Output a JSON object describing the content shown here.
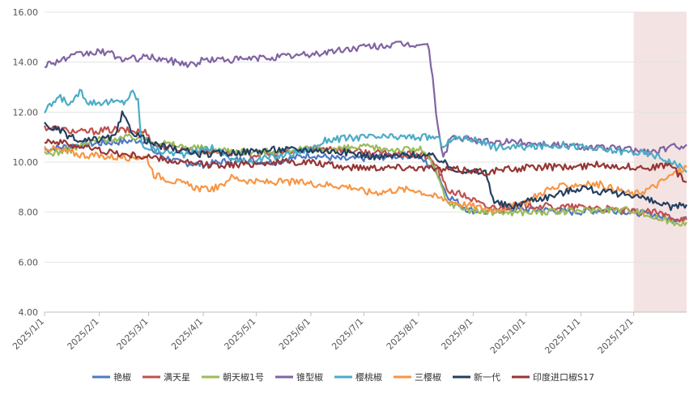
{
  "chart_data": {
    "type": "line",
    "title": "",
    "xlabel": "",
    "ylabel": "",
    "ylim": [
      4,
      16
    ],
    "yticks": [
      4,
      6,
      8,
      10,
      12,
      14,
      16
    ],
    "ytick_labels": [
      "4.00",
      "6.00",
      "8.00",
      "10.00",
      "12.00",
      "14.00",
      "16.00"
    ],
    "x_start": "2025-01-01",
    "x_end": "2025-12-31",
    "xtick_labels": [
      "2025/1/1",
      "2025/2/1",
      "2025/3/1",
      "2025/4/1",
      "2025/5/1",
      "2025/6/1",
      "2025/7/1",
      "2025/8/1",
      "2025/9/1",
      "2025/10/1",
      "2025/11/1",
      "2025/12/1"
    ],
    "xtick_days": [
      0,
      31,
      59,
      90,
      120,
      151,
      181,
      212,
      243,
      273,
      304,
      334
    ],
    "highlight_region": {
      "from_day": 334,
      "to_day": 364,
      "color": "#f2dede"
    },
    "legend_position": "bottom-center",
    "series": [
      {
        "name": "艳椒",
        "color": "#4e79c0",
        "points": [
          [
            0,
            10.5
          ],
          [
            20,
            10.7
          ],
          [
            40,
            10.8
          ],
          [
            58,
            10.9
          ],
          [
            62,
            10.4
          ],
          [
            75,
            10.0
          ],
          [
            90,
            9.9
          ],
          [
            110,
            10.1
          ],
          [
            130,
            10.0
          ],
          [
            150,
            10.3
          ],
          [
            170,
            10.1
          ],
          [
            190,
            10.2
          ],
          [
            210,
            10.3
          ],
          [
            222,
            9.7
          ],
          [
            228,
            8.7
          ],
          [
            240,
            8.1
          ],
          [
            250,
            8.0
          ],
          [
            260,
            8.1
          ],
          [
            280,
            8.1
          ],
          [
            300,
            8.0
          ],
          [
            320,
            8.1
          ],
          [
            334,
            8.0
          ],
          [
            345,
            7.9
          ],
          [
            356,
            7.7
          ],
          [
            364,
            7.8
          ]
        ]
      },
      {
        "name": "满天星",
        "color": "#c0504d",
        "points": [
          [
            0,
            11.4
          ],
          [
            20,
            11.2
          ],
          [
            40,
            11.3
          ],
          [
            58,
            11.2
          ],
          [
            62,
            10.7
          ],
          [
            80,
            10.5
          ],
          [
            100,
            10.4
          ],
          [
            120,
            10.3
          ],
          [
            140,
            10.4
          ],
          [
            160,
            10.6
          ],
          [
            180,
            10.4
          ],
          [
            200,
            10.3
          ],
          [
            215,
            10.3
          ],
          [
            222,
            9.9
          ],
          [
            228,
            8.9
          ],
          [
            240,
            8.6
          ],
          [
            250,
            8.2
          ],
          [
            260,
            8.2
          ],
          [
            270,
            8.3
          ],
          [
            290,
            8.2
          ],
          [
            310,
            8.2
          ],
          [
            334,
            8.0
          ],
          [
            345,
            8.0
          ],
          [
            356,
            7.8
          ],
          [
            364,
            7.7
          ]
        ]
      },
      {
        "name": "朝天椒1号",
        "color": "#9bbb59",
        "points": [
          [
            0,
            10.3
          ],
          [
            15,
            10.5
          ],
          [
            30,
            10.9
          ],
          [
            50,
            11.0
          ],
          [
            58,
            11.0
          ],
          [
            65,
            10.8
          ],
          [
            80,
            10.6
          ],
          [
            100,
            10.5
          ],
          [
            120,
            10.4
          ],
          [
            140,
            10.5
          ],
          [
            160,
            10.5
          ],
          [
            180,
            10.6
          ],
          [
            200,
            10.5
          ],
          [
            215,
            10.5
          ],
          [
            222,
            9.6
          ],
          [
            228,
            8.4
          ],
          [
            240,
            8.1
          ],
          [
            250,
            8.0
          ],
          [
            270,
            8.0
          ],
          [
            290,
            8.0
          ],
          [
            310,
            8.1
          ],
          [
            334,
            8.1
          ],
          [
            345,
            7.8
          ],
          [
            356,
            7.6
          ],
          [
            364,
            7.6
          ]
        ]
      },
      {
        "name": "锥型椒",
        "color": "#8064a2",
        "points": [
          [
            0,
            13.9
          ],
          [
            10,
            14.1
          ],
          [
            20,
            14.3
          ],
          [
            30,
            14.4
          ],
          [
            35,
            14.4
          ],
          [
            45,
            14.1
          ],
          [
            60,
            14.2
          ],
          [
            75,
            14.0
          ],
          [
            85,
            13.9
          ],
          [
            90,
            14.1
          ],
          [
            110,
            14.1
          ],
          [
            130,
            14.2
          ],
          [
            150,
            14.3
          ],
          [
            170,
            14.5
          ],
          [
            180,
            14.6
          ],
          [
            200,
            14.7
          ],
          [
            215,
            14.7
          ],
          [
            218,
            14.6
          ],
          [
            222,
            12.0
          ],
          [
            226,
            10.1
          ],
          [
            230,
            11.0
          ],
          [
            250,
            10.8
          ],
          [
            270,
            10.8
          ],
          [
            290,
            10.7
          ],
          [
            310,
            10.6
          ],
          [
            334,
            10.5
          ],
          [
            345,
            10.4
          ],
          [
            356,
            10.6
          ],
          [
            364,
            10.7
          ]
        ]
      },
      {
        "name": "樱桃椒",
        "color": "#4bacc6",
        "points": [
          [
            0,
            12.0
          ],
          [
            8,
            12.6
          ],
          [
            16,
            12.3
          ],
          [
            20,
            12.9
          ],
          [
            25,
            12.4
          ],
          [
            45,
            12.4
          ],
          [
            50,
            12.8
          ],
          [
            53,
            12.5
          ],
          [
            55,
            10.7
          ],
          [
            62,
            10.5
          ],
          [
            80,
            10.3
          ],
          [
            95,
            10.6
          ],
          [
            110,
            10.0
          ],
          [
            130,
            10.2
          ],
          [
            150,
            10.5
          ],
          [
            160,
            10.9
          ],
          [
            180,
            11.0
          ],
          [
            200,
            11.0
          ],
          [
            215,
            11.0
          ],
          [
            222,
            11.0
          ],
          [
            226,
            10.7
          ],
          [
            235,
            11.0
          ],
          [
            245,
            10.9
          ],
          [
            255,
            10.6
          ],
          [
            275,
            10.6
          ],
          [
            295,
            10.7
          ],
          [
            315,
            10.5
          ],
          [
            334,
            10.4
          ],
          [
            345,
            10.3
          ],
          [
            356,
            10.0
          ],
          [
            364,
            9.6
          ]
        ]
      },
      {
        "name": "三樱椒",
        "color": "#f79646",
        "points": [
          [
            0,
            10.6
          ],
          [
            20,
            10.3
          ],
          [
            40,
            10.2
          ],
          [
            58,
            10.2
          ],
          [
            62,
            9.5
          ],
          [
            75,
            9.2
          ],
          [
            90,
            8.9
          ],
          [
            100,
            9.0
          ],
          [
            105,
            9.4
          ],
          [
            120,
            9.2
          ],
          [
            140,
            9.2
          ],
          [
            160,
            9.1
          ],
          [
            175,
            9.0
          ],
          [
            182,
            8.8
          ],
          [
            190,
            8.8
          ],
          [
            200,
            8.9
          ],
          [
            210,
            8.9
          ],
          [
            222,
            8.6
          ],
          [
            232,
            8.4
          ],
          [
            245,
            8.2
          ],
          [
            255,
            8.1
          ],
          [
            270,
            8.3
          ],
          [
            285,
            8.9
          ],
          [
            300,
            9.1
          ],
          [
            315,
            9.1
          ],
          [
            334,
            8.7
          ],
          [
            345,
            9.0
          ],
          [
            356,
            9.5
          ],
          [
            364,
            9.8
          ]
        ]
      },
      {
        "name": "新一代",
        "color": "#243f60",
        "points": [
          [
            0,
            11.5
          ],
          [
            10,
            11.2
          ],
          [
            20,
            10.8
          ],
          [
            30,
            10.9
          ],
          [
            40,
            11.0
          ],
          [
            44,
            11.9
          ],
          [
            50,
            11.2
          ],
          [
            55,
            11.0
          ],
          [
            62,
            10.7
          ],
          [
            75,
            10.5
          ],
          [
            90,
            10.3
          ],
          [
            110,
            10.4
          ],
          [
            130,
            10.5
          ],
          [
            150,
            10.5
          ],
          [
            170,
            10.4
          ],
          [
            190,
            10.2
          ],
          [
            210,
            10.3
          ],
          [
            222,
            10.2
          ],
          [
            230,
            9.8
          ],
          [
            240,
            9.6
          ],
          [
            250,
            9.6
          ],
          [
            255,
            8.4
          ],
          [
            265,
            8.2
          ],
          [
            275,
            8.5
          ],
          [
            285,
            8.6
          ],
          [
            295,
            8.8
          ],
          [
            305,
            9.0
          ],
          [
            315,
            8.8
          ],
          [
            334,
            8.7
          ],
          [
            345,
            8.4
          ],
          [
            356,
            8.2
          ],
          [
            364,
            8.3
          ]
        ]
      },
      {
        "name": "印度进口椒S17",
        "color": "#963634",
        "points": [
          [
            0,
            10.9
          ],
          [
            15,
            10.7
          ],
          [
            30,
            10.5
          ],
          [
            45,
            10.3
          ],
          [
            60,
            10.2
          ],
          [
            75,
            10.0
          ],
          [
            90,
            9.9
          ],
          [
            110,
            9.9
          ],
          [
            130,
            10.0
          ],
          [
            150,
            10.0
          ],
          [
            170,
            9.8
          ],
          [
            190,
            9.8
          ],
          [
            210,
            9.8
          ],
          [
            222,
            9.7
          ],
          [
            240,
            9.7
          ],
          [
            250,
            9.6
          ],
          [
            260,
            9.7
          ],
          [
            280,
            9.8
          ],
          [
            300,
            9.8
          ],
          [
            315,
            9.9
          ],
          [
            334,
            9.8
          ],
          [
            345,
            9.8
          ],
          [
            356,
            9.9
          ],
          [
            359,
            9.5
          ],
          [
            364,
            9.2
          ]
        ]
      }
    ]
  }
}
